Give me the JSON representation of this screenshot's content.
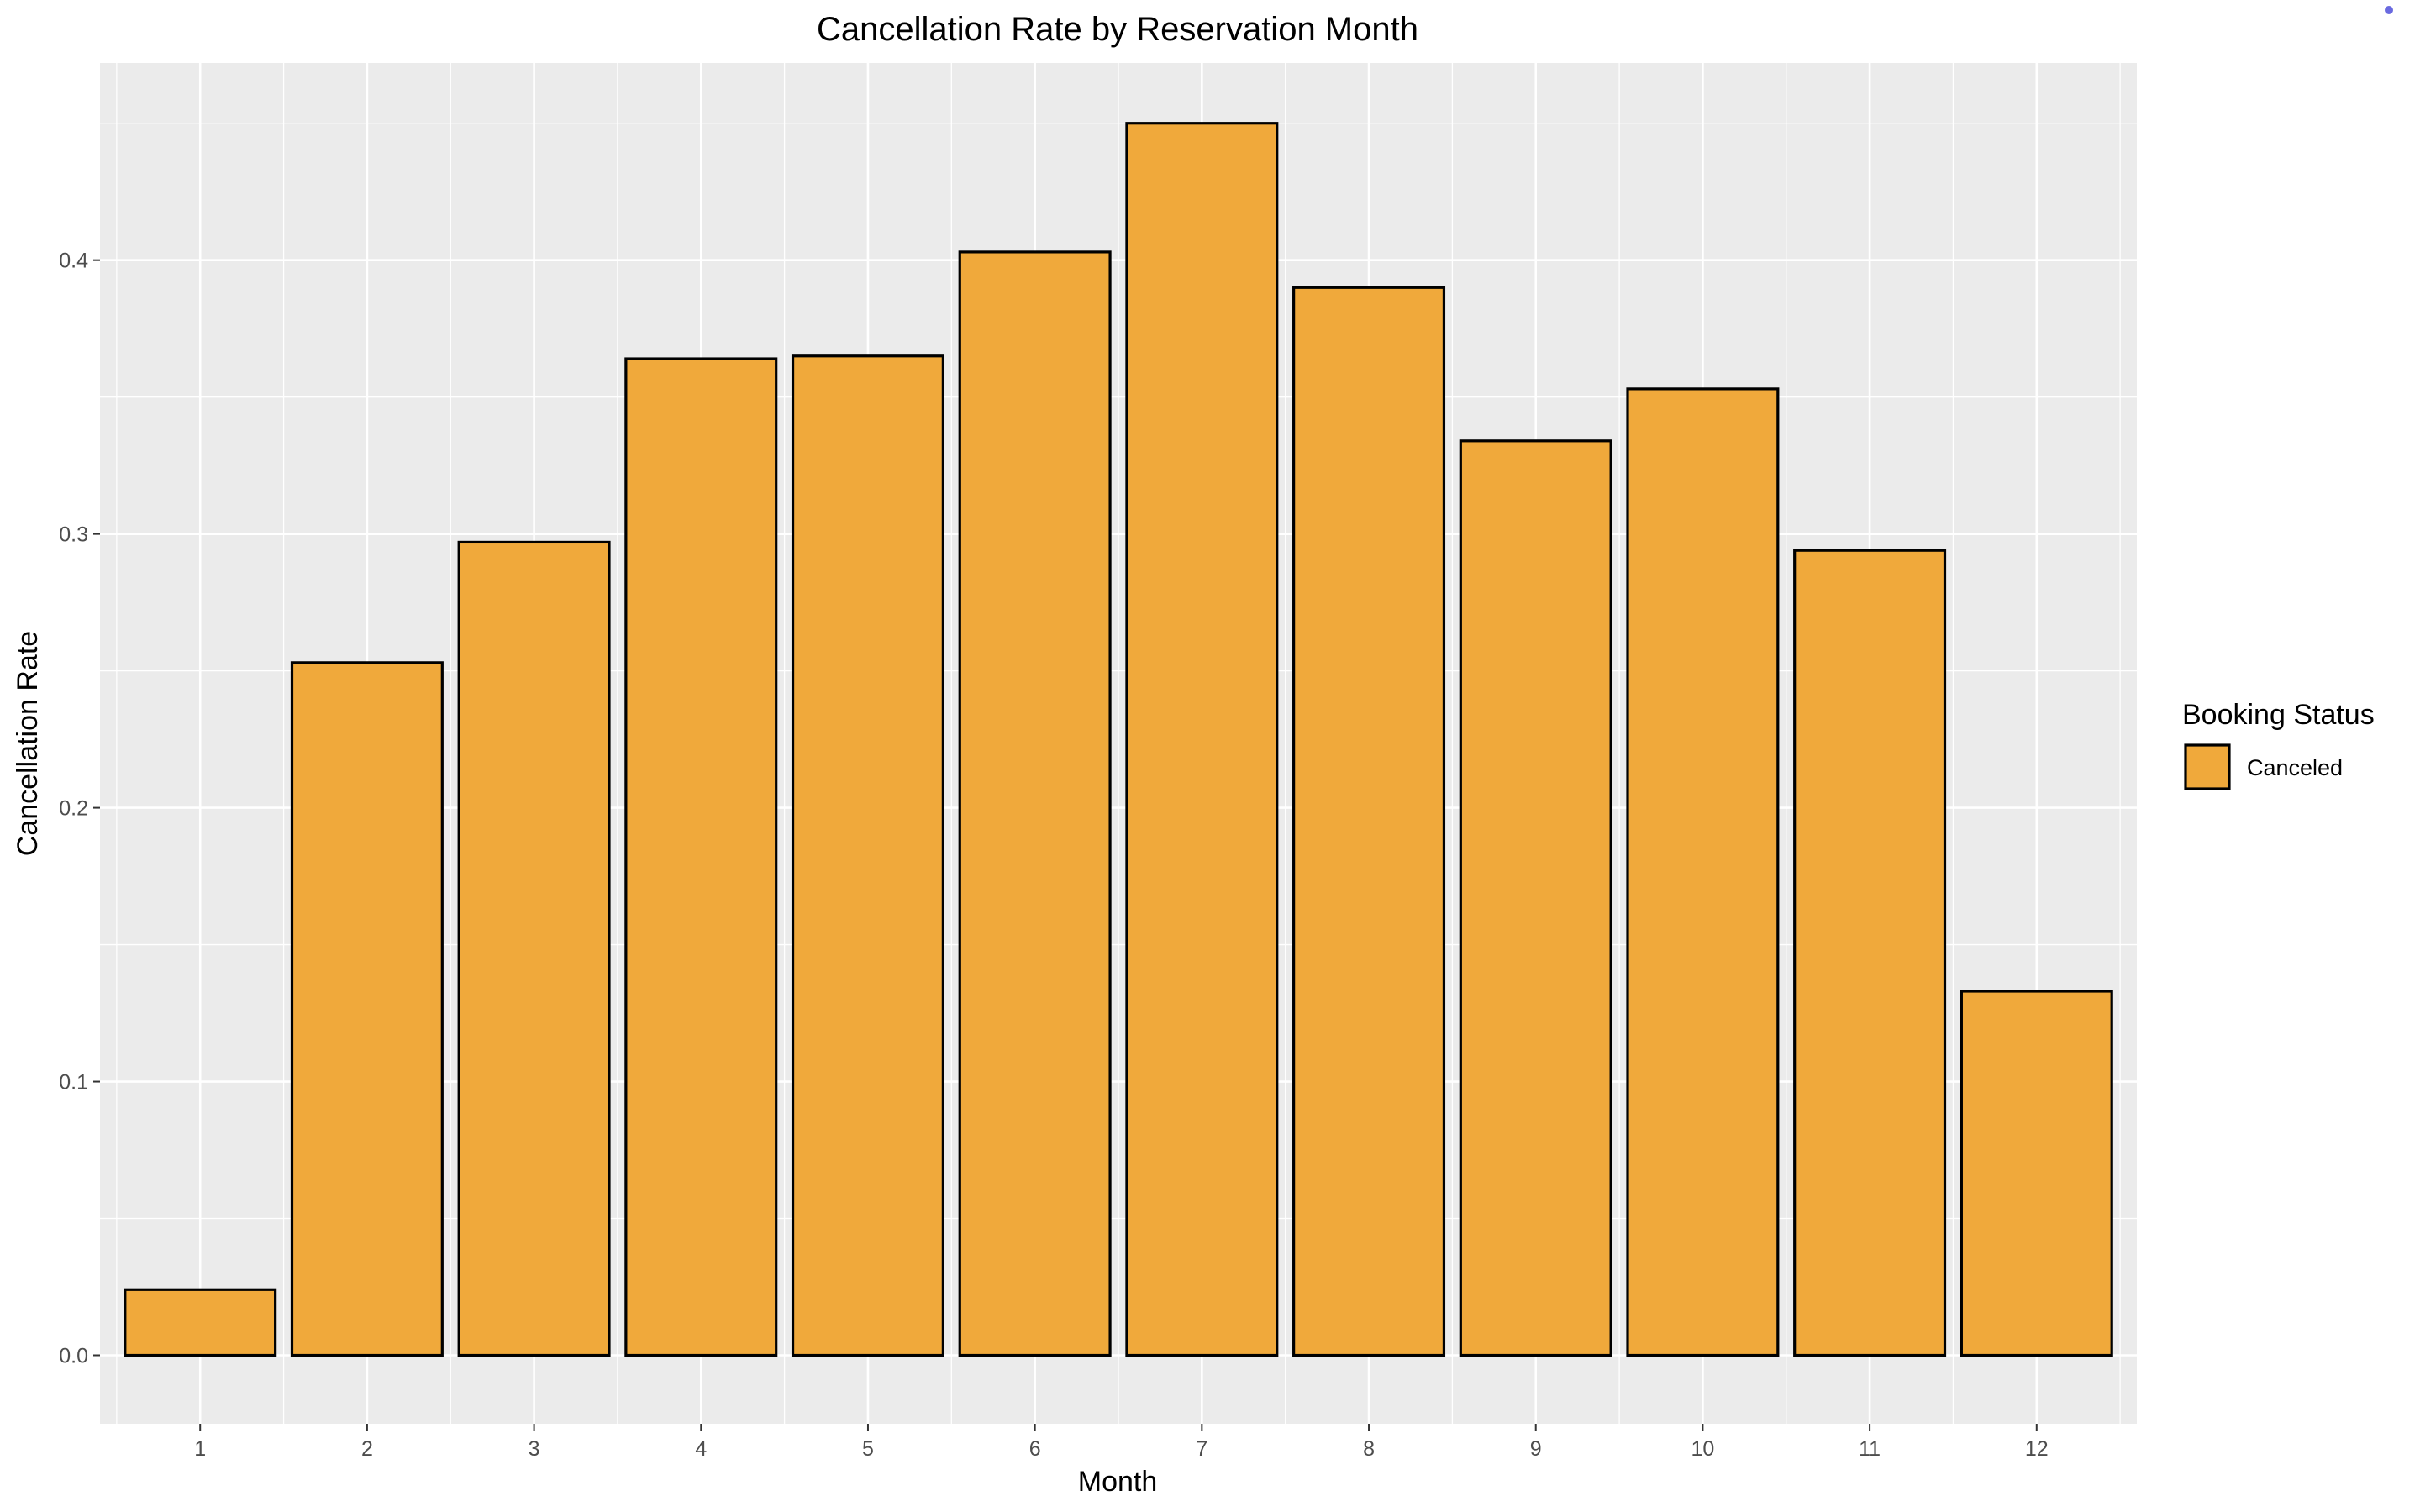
{
  "chart_data": {
    "type": "bar",
    "title": "Cancellation Rate by Reservation Month",
    "xlabel": "Month",
    "ylabel": "Cancellation Rate",
    "categories": [
      "1",
      "2",
      "3",
      "4",
      "5",
      "6",
      "7",
      "8",
      "9",
      "10",
      "11",
      "12"
    ],
    "series": [
      {
        "name": "Canceled",
        "values": [
          0.024,
          0.253,
          0.297,
          0.364,
          0.365,
          0.403,
          0.45,
          0.39,
          0.334,
          0.353,
          0.294,
          0.133
        ]
      }
    ],
    "yticks": [
      "0.0",
      "0.1",
      "0.2",
      "0.3",
      "0.4"
    ],
    "ylim": [
      -0.025,
      0.472
    ],
    "grid": true,
    "legend": {
      "title": "Booking Status",
      "position": "right"
    },
    "colors": {
      "bar_fill": "#F0A93B",
      "bar_outline": "#000000",
      "panel_background": "#EBEBEB",
      "grid": "#FFFFFF"
    }
  }
}
